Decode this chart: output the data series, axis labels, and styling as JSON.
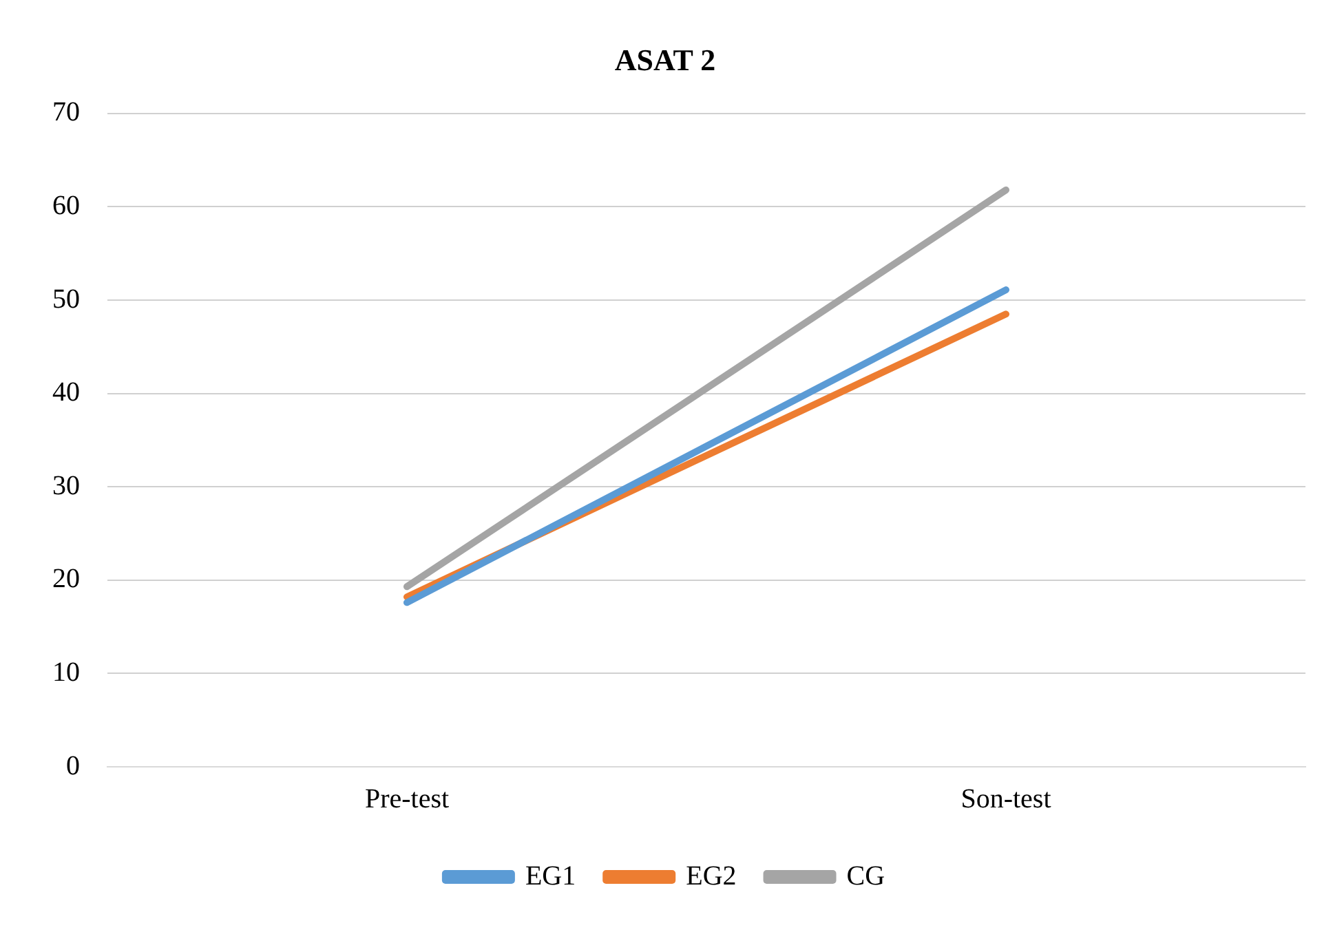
{
  "chart_data": {
    "type": "line",
    "title": "ASAT 2",
    "categories": [
      "Pre-test",
      "Son-test"
    ],
    "series": [
      {
        "name": "EG1",
        "color": "#5b9bd5",
        "values": [
          17.6,
          51.1
        ]
      },
      {
        "name": "EG2",
        "color": "#ed7d31",
        "values": [
          18.2,
          48.5
        ]
      },
      {
        "name": "CG",
        "color": "#a5a5a5",
        "values": [
          19.3,
          61.8
        ]
      }
    ],
    "ylim": [
      0,
      70
    ],
    "yticks": [
      0,
      10,
      20,
      30,
      40,
      50,
      60,
      70
    ],
    "grid": "y",
    "legend": "bottom",
    "marker": "none",
    "line_style": "solid"
  }
}
